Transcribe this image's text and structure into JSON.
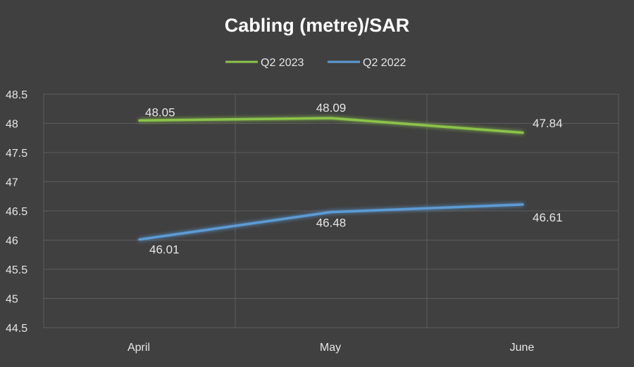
{
  "chart_data": {
    "type": "line",
    "title": "Cabling (metre)/SAR",
    "xlabel": "",
    "ylabel": "",
    "categories": [
      "April",
      "May",
      "June"
    ],
    "ylim": [
      44.5,
      48.5
    ],
    "yticks": [
      "44.5",
      "45",
      "45.5",
      "46",
      "46.5",
      "47",
      "47.5",
      "48",
      "48.5"
    ],
    "grid": true,
    "legend_position": "top",
    "series": [
      {
        "name": "Q2 2023",
        "color": "#8bc34a",
        "values": [
          48.05,
          48.09,
          47.84
        ],
        "labels": [
          "48.05",
          "48.09",
          "47.84"
        ]
      },
      {
        "name": "Q2 2022",
        "color": "#5b9bd5",
        "values": [
          46.01,
          46.48,
          46.61
        ],
        "labels": [
          "46.01",
          "46.48",
          "46.61"
        ]
      }
    ]
  }
}
